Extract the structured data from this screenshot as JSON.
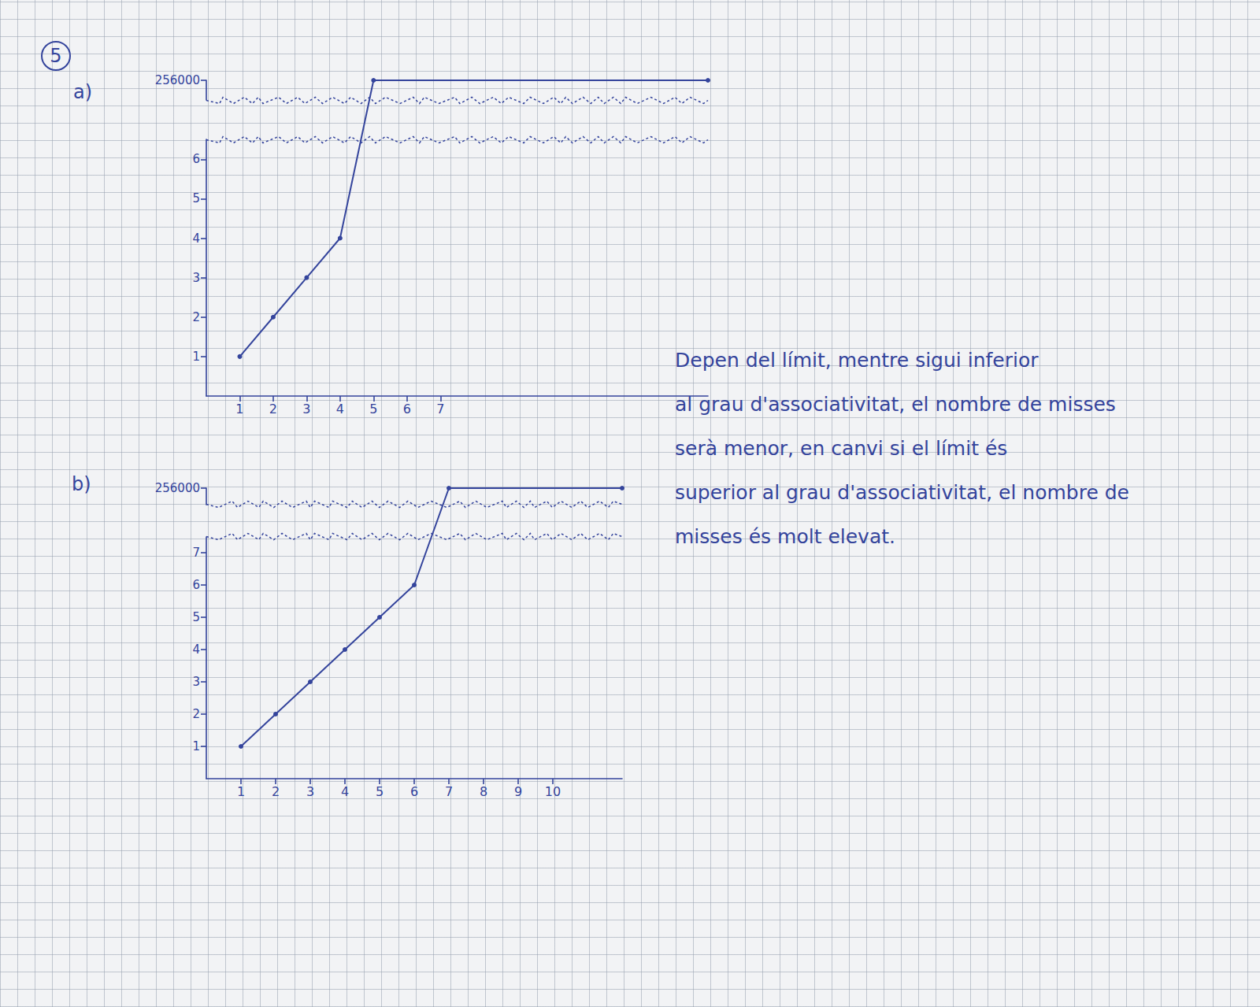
{
  "exercise_number": "5",
  "text_lines": [
    "Depen del límit, mentre sigui inferior",
    "al grau d'associativitat, el nombre de misses",
    "serà menor, en canvi si el límit és",
    "superior al grau d'associativitat, el nombre de",
    "misses és molt elevat."
  ],
  "chart_data": [
    {
      "type": "line",
      "title": "a)",
      "x": [
        1,
        2,
        3,
        4,
        5,
        15
      ],
      "values": [
        1,
        2,
        3,
        4,
        256000,
        256000
      ],
      "color": "#34449c",
      "marker": "circle",
      "grid": false,
      "xlim": [
        0,
        15
      ],
      "xticks": [
        1,
        2,
        3,
        4,
        5,
        6,
        7
      ],
      "ylim": [
        0,
        256000
      ],
      "yticks": [
        1,
        2,
        3,
        4,
        5,
        6,
        256000
      ]
    },
    {
      "type": "line",
      "title": "b)",
      "x": [
        1,
        2,
        3,
        4,
        5,
        6,
        7,
        12
      ],
      "values": [
        1,
        2,
        3,
        4,
        5,
        6,
        256000,
        256000
      ],
      "color": "#34449c",
      "marker": "circle",
      "grid": false,
      "xlim": [
        0,
        12
      ],
      "xticks": [
        1,
        2,
        3,
        4,
        5,
        6,
        7,
        8,
        9,
        10
      ],
      "ylim": [
        0,
        256000
      ],
      "yticks": [
        1,
        2,
        3,
        4,
        5,
        6,
        7,
        256000
      ]
    }
  ]
}
